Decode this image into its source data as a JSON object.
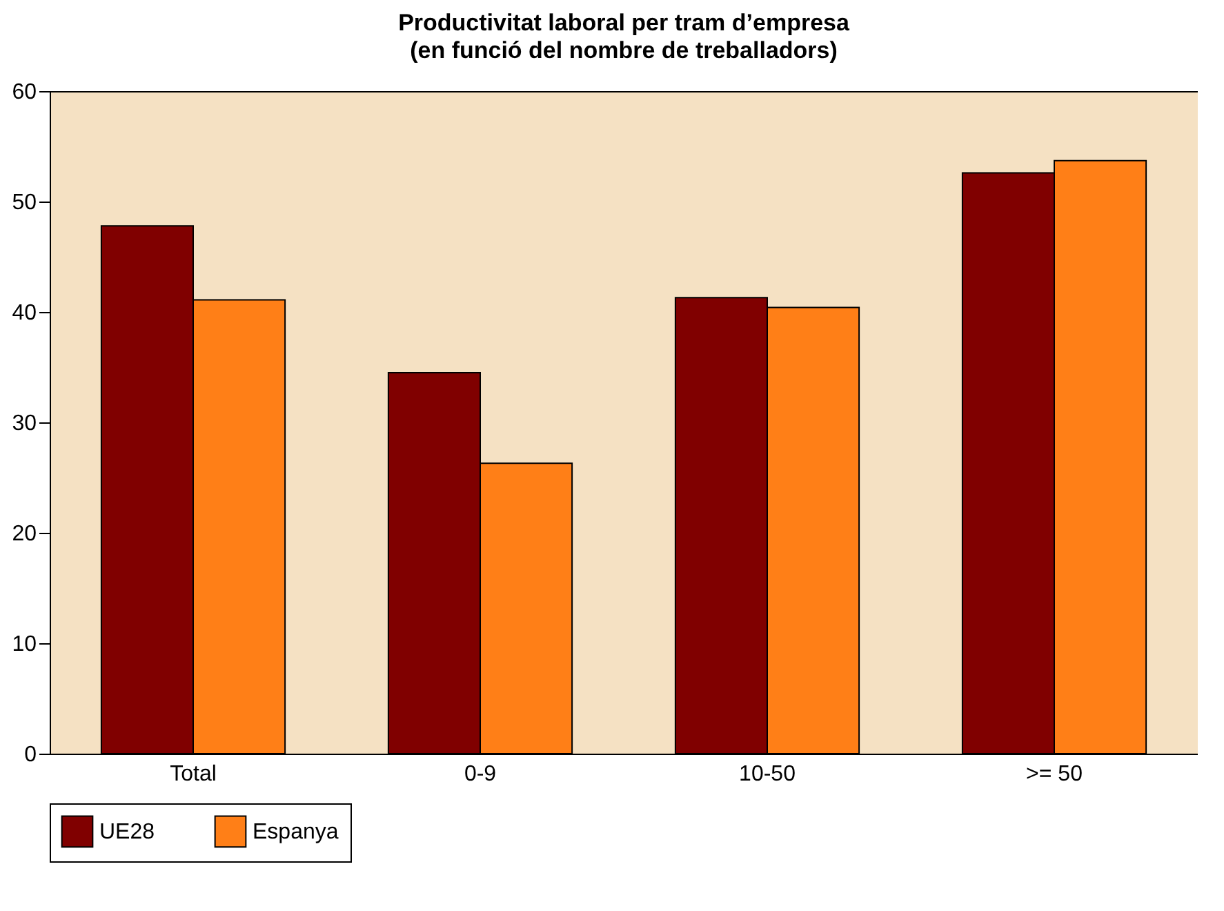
{
  "chart_data": {
    "type": "bar",
    "title": "Productivitat laboral per tram d’empresa",
    "subtitle": "(en funció del nombre de treballadors)",
    "categories": [
      "Total",
      "0-9",
      "10-50",
      ">= 50"
    ],
    "series": [
      {
        "name": "UE28",
        "color": "#800000",
        "values": [
          47.8,
          34.5,
          41.3,
          52.6
        ]
      },
      {
        "name": "Espanya",
        "color": "#ff7f17",
        "values": [
          41.1,
          26.3,
          40.4,
          53.7
        ]
      }
    ],
    "ylim": [
      0,
      60
    ],
    "yticks": [
      0,
      10,
      20,
      30,
      40,
      50,
      60
    ],
    "legend": "bottom"
  }
}
